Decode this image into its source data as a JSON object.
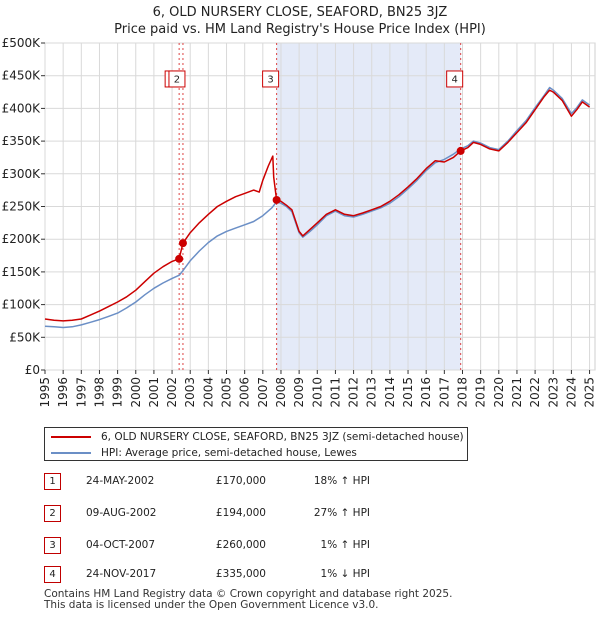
{
  "chart_data": {
    "type": "line",
    "title": "6, OLD NURSERY CLOSE, SEAFORD, BN25 3JZ",
    "subtitle": "Price paid vs. HM Land Registry's House Price Index (HPI)",
    "xlabel": "",
    "ylabel": "",
    "xlim": [
      1995,
      2025.3
    ],
    "ylim": [
      0,
      500000
    ],
    "grid": true,
    "y_ticks": [
      {
        "value": 0,
        "label": "£0"
      },
      {
        "value": 50000,
        "label": "£50K"
      },
      {
        "value": 100000,
        "label": "£100K"
      },
      {
        "value": 150000,
        "label": "£150K"
      },
      {
        "value": 200000,
        "label": "£200K"
      },
      {
        "value": 250000,
        "label": "£250K"
      },
      {
        "value": 300000,
        "label": "£300K"
      },
      {
        "value": 350000,
        "label": "£350K"
      },
      {
        "value": 400000,
        "label": "£400K"
      },
      {
        "value": 450000,
        "label": "£450K"
      },
      {
        "value": 500000,
        "label": "£500K"
      }
    ],
    "x_ticks": [
      "1995",
      "1996",
      "1997",
      "1998",
      "1999",
      "2000",
      "2001",
      "2002",
      "2003",
      "2004",
      "2005",
      "2006",
      "2007",
      "2008",
      "2009",
      "2010",
      "2011",
      "2012",
      "2013",
      "2014",
      "2015",
      "2016",
      "2017",
      "2018",
      "2019",
      "2020",
      "2021",
      "2022",
      "2023",
      "2024",
      "2025"
    ],
    "shaded_ranges": [
      [
        2007.76,
        2017.9
      ]
    ],
    "series": [
      {
        "name": "6, OLD NURSERY CLOSE, SEAFORD, BN25 3JZ (semi-detached house)",
        "color": "#cc0000",
        "points": [
          [
            1995.0,
            78000
          ],
          [
            1995.5,
            76000
          ],
          [
            1996.0,
            75000
          ],
          [
            1996.5,
            76000
          ],
          [
            1997.0,
            78000
          ],
          [
            1997.5,
            84000
          ],
          [
            1998.0,
            90000
          ],
          [
            1998.5,
            97000
          ],
          [
            1999.0,
            104000
          ],
          [
            1999.5,
            112000
          ],
          [
            2000.0,
            122000
          ],
          [
            2000.5,
            135000
          ],
          [
            2001.0,
            148000
          ],
          [
            2001.5,
            158000
          ],
          [
            2002.0,
            166000
          ],
          [
            2002.39,
            170000
          ],
          [
            2002.6,
            194000
          ],
          [
            2003.0,
            210000
          ],
          [
            2003.5,
            225000
          ],
          [
            2004.0,
            238000
          ],
          [
            2004.5,
            250000
          ],
          [
            2005.0,
            258000
          ],
          [
            2005.5,
            265000
          ],
          [
            2006.0,
            270000
          ],
          [
            2006.5,
            275000
          ],
          [
            2006.8,
            272000
          ],
          [
            2007.0,
            290000
          ],
          [
            2007.3,
            312000
          ],
          [
            2007.55,
            327000
          ],
          [
            2007.6,
            295000
          ],
          [
            2007.76,
            260000
          ],
          [
            2008.0,
            258000
          ],
          [
            2008.3,
            252000
          ],
          [
            2008.6,
            245000
          ],
          [
            2009.0,
            212000
          ],
          [
            2009.2,
            205000
          ],
          [
            2009.6,
            215000
          ],
          [
            2010.0,
            225000
          ],
          [
            2010.5,
            238000
          ],
          [
            2011.0,
            245000
          ],
          [
            2011.5,
            238000
          ],
          [
            2012.0,
            236000
          ],
          [
            2012.5,
            240000
          ],
          [
            2013.0,
            245000
          ],
          [
            2013.5,
            250000
          ],
          [
            2014.0,
            258000
          ],
          [
            2014.5,
            268000
          ],
          [
            2015.0,
            280000
          ],
          [
            2015.5,
            293000
          ],
          [
            2016.0,
            308000
          ],
          [
            2016.5,
            320000
          ],
          [
            2017.0,
            318000
          ],
          [
            2017.5,
            325000
          ],
          [
            2017.9,
            335000
          ],
          [
            2018.3,
            340000
          ],
          [
            2018.6,
            348000
          ],
          [
            2019.0,
            345000
          ],
          [
            2019.5,
            338000
          ],
          [
            2020.0,
            335000
          ],
          [
            2020.5,
            348000
          ],
          [
            2021.0,
            363000
          ],
          [
            2021.5,
            378000
          ],
          [
            2022.0,
            398000
          ],
          [
            2022.5,
            418000
          ],
          [
            2022.8,
            428000
          ],
          [
            2023.0,
            425000
          ],
          [
            2023.5,
            412000
          ],
          [
            2024.0,
            388000
          ],
          [
            2024.3,
            398000
          ],
          [
            2024.6,
            410000
          ],
          [
            2025.0,
            402000
          ]
        ]
      },
      {
        "name": "HPI: Average price, semi-detached house, Lewes",
        "color": "#6b8fc6",
        "points": [
          [
            1995.0,
            67000
          ],
          [
            1995.5,
            66000
          ],
          [
            1996.0,
            65000
          ],
          [
            1996.5,
            66000
          ],
          [
            1997.0,
            69000
          ],
          [
            1997.5,
            73000
          ],
          [
            1998.0,
            77000
          ],
          [
            1998.5,
            82000
          ],
          [
            1999.0,
            87000
          ],
          [
            1999.5,
            95000
          ],
          [
            2000.0,
            104000
          ],
          [
            2000.5,
            115000
          ],
          [
            2001.0,
            125000
          ],
          [
            2001.5,
            133000
          ],
          [
            2002.0,
            140000
          ],
          [
            2002.4,
            145000
          ],
          [
            2002.6,
            152000
          ],
          [
            2003.0,
            167000
          ],
          [
            2003.5,
            182000
          ],
          [
            2004.0,
            195000
          ],
          [
            2004.5,
            205000
          ],
          [
            2005.0,
            212000
          ],
          [
            2005.5,
            217000
          ],
          [
            2006.0,
            222000
          ],
          [
            2006.5,
            227000
          ],
          [
            2007.0,
            236000
          ],
          [
            2007.5,
            248000
          ],
          [
            2007.76,
            257000
          ],
          [
            2008.0,
            255000
          ],
          [
            2008.3,
            250000
          ],
          [
            2008.6,
            242000
          ],
          [
            2009.0,
            210000
          ],
          [
            2009.2,
            203000
          ],
          [
            2009.6,
            212000
          ],
          [
            2010.0,
            222000
          ],
          [
            2010.5,
            236000
          ],
          [
            2011.0,
            243000
          ],
          [
            2011.5,
            236000
          ],
          [
            2012.0,
            234000
          ],
          [
            2012.5,
            238000
          ],
          [
            2013.0,
            243000
          ],
          [
            2013.5,
            248000
          ],
          [
            2014.0,
            255000
          ],
          [
            2014.5,
            265000
          ],
          [
            2015.0,
            277000
          ],
          [
            2015.5,
            290000
          ],
          [
            2016.0,
            305000
          ],
          [
            2016.5,
            317000
          ],
          [
            2017.0,
            322000
          ],
          [
            2017.5,
            330000
          ],
          [
            2017.9,
            338000
          ],
          [
            2018.3,
            343000
          ],
          [
            2018.6,
            350000
          ],
          [
            2019.0,
            347000
          ],
          [
            2019.5,
            340000
          ],
          [
            2020.0,
            337000
          ],
          [
            2020.5,
            350000
          ],
          [
            2021.0,
            366000
          ],
          [
            2021.5,
            381000
          ],
          [
            2022.0,
            401000
          ],
          [
            2022.5,
            420000
          ],
          [
            2022.8,
            432000
          ],
          [
            2023.0,
            428000
          ],
          [
            2023.5,
            415000
          ],
          [
            2024.0,
            392000
          ],
          [
            2024.3,
            401000
          ],
          [
            2024.6,
            413000
          ],
          [
            2025.0,
            405000
          ]
        ]
      }
    ],
    "sales": [
      {
        "id": "1",
        "x": 2002.39,
        "price": 170000
      },
      {
        "id": "2",
        "x": 2002.6,
        "price": 194000
      },
      {
        "id": "3",
        "x": 2007.76,
        "price": 260000
      },
      {
        "id": "4",
        "x": 2017.9,
        "price": 335000
      }
    ],
    "marker_level": 445000
  },
  "legend": {
    "property_label": "6, OLD NURSERY CLOSE, SEAFORD, BN25 3JZ (semi-detached house)",
    "hpi_label": "HPI: Average price, semi-detached house, Lewes",
    "property_color": "#cc0000",
    "hpi_color": "#6b8fc6"
  },
  "sales_table": [
    {
      "num": "1",
      "date": "24-MAY-2002",
      "price": "£170,000",
      "hpi": "18% ↑ HPI"
    },
    {
      "num": "2",
      "date": "09-AUG-2002",
      "price": "£194,000",
      "hpi": "27% ↑ HPI"
    },
    {
      "num": "3",
      "date": "04-OCT-2007",
      "price": "£260,000",
      "hpi": "1% ↑ HPI"
    },
    {
      "num": "4",
      "date": "24-NOV-2017",
      "price": "£335,000",
      "hpi": "1% ↓ HPI"
    }
  ],
  "footer": {
    "line1": "Contains HM Land Registry data © Crown copyright and database right 2025.",
    "line2": "This data is licensed under the Open Government Licence v3.0."
  }
}
